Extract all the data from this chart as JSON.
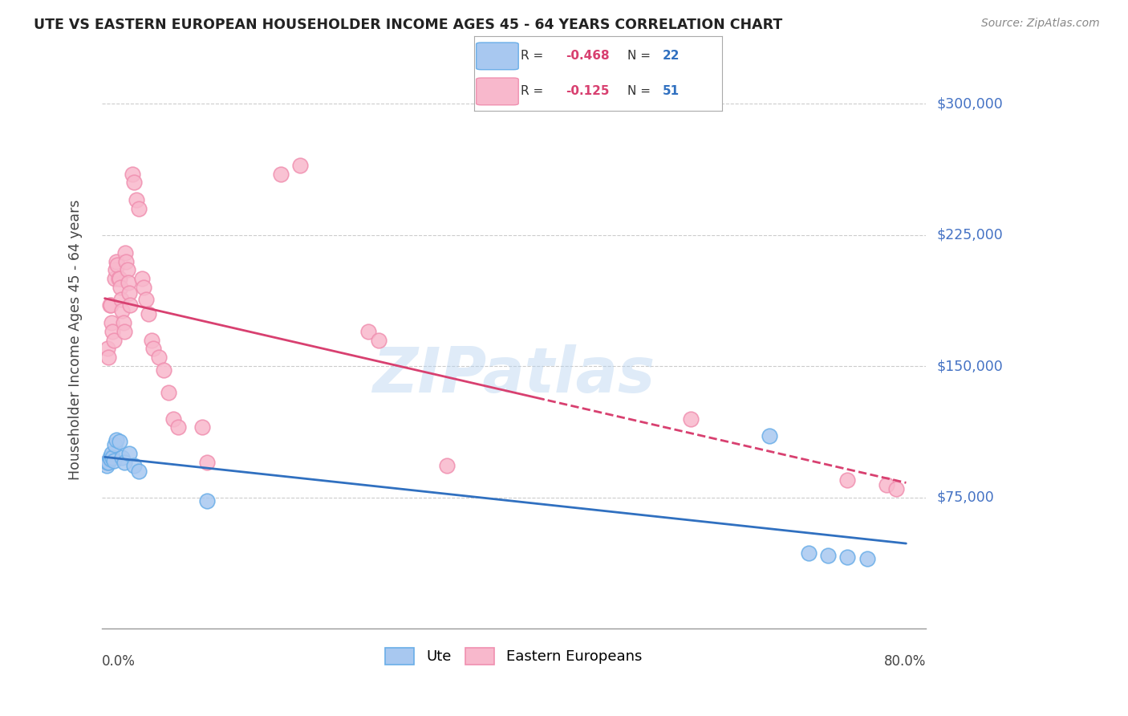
{
  "title": "UTE VS EASTERN EUROPEAN HOUSEHOLDER INCOME AGES 45 - 64 YEARS CORRELATION CHART",
  "source": "Source: ZipAtlas.com",
  "ylabel": "Householder Income Ages 45 - 64 years",
  "ytick_labels": [
    "$75,000",
    "$150,000",
    "$225,000",
    "$300,000"
  ],
  "ytick_values": [
    75000,
    150000,
    225000,
    300000
  ],
  "ymin": 0,
  "ymax": 330000,
  "xmin": -0.003,
  "xmax": 0.84,
  "ute_color": "#a8c8f0",
  "ute_edge_color": "#6aaee8",
  "eastern_color": "#f8b8cc",
  "eastern_edge_color": "#f090b0",
  "ute_line_color": "#3070c0",
  "eastern_line_color": "#d84070",
  "legend_ute_R": "-0.468",
  "legend_ute_N": "22",
  "legend_eastern_R": "-0.125",
  "legend_eastern_N": "51",
  "watermark": "ZIPatlas",
  "ute_x": [
    0.002,
    0.003,
    0.004,
    0.005,
    0.006,
    0.007,
    0.008,
    0.009,
    0.01,
    0.012,
    0.015,
    0.018,
    0.02,
    0.025,
    0.03,
    0.035,
    0.105,
    0.68,
    0.72,
    0.74,
    0.76,
    0.78
  ],
  "ute_y": [
    93000,
    95000,
    95000,
    98000,
    97000,
    100000,
    98000,
    96000,
    105000,
    108000,
    107000,
    98000,
    95000,
    100000,
    93000,
    90000,
    73000,
    110000,
    43000,
    42000,
    41000,
    40000
  ],
  "eastern_x": [
    0.002,
    0.003,
    0.004,
    0.005,
    0.006,
    0.007,
    0.008,
    0.009,
    0.01,
    0.011,
    0.012,
    0.013,
    0.014,
    0.015,
    0.016,
    0.017,
    0.018,
    0.019,
    0.02,
    0.021,
    0.022,
    0.023,
    0.024,
    0.025,
    0.026,
    0.028,
    0.03,
    0.032,
    0.035,
    0.038,
    0.04,
    0.042,
    0.045,
    0.048,
    0.05,
    0.055,
    0.06,
    0.065,
    0.07,
    0.075,
    0.1,
    0.105,
    0.18,
    0.2,
    0.27,
    0.28,
    0.35,
    0.6,
    0.76,
    0.8,
    0.81
  ],
  "eastern_y": [
    95000,
    160000,
    155000,
    185000,
    185000,
    175000,
    170000,
    165000,
    200000,
    205000,
    210000,
    208000,
    200000,
    200000,
    195000,
    188000,
    182000,
    175000,
    170000,
    215000,
    210000,
    205000,
    198000,
    192000,
    185000,
    260000,
    255000,
    245000,
    240000,
    200000,
    195000,
    188000,
    180000,
    165000,
    160000,
    155000,
    148000,
    135000,
    120000,
    115000,
    115000,
    95000,
    260000,
    265000,
    170000,
    165000,
    93000,
    120000,
    85000,
    82000,
    80000
  ]
}
